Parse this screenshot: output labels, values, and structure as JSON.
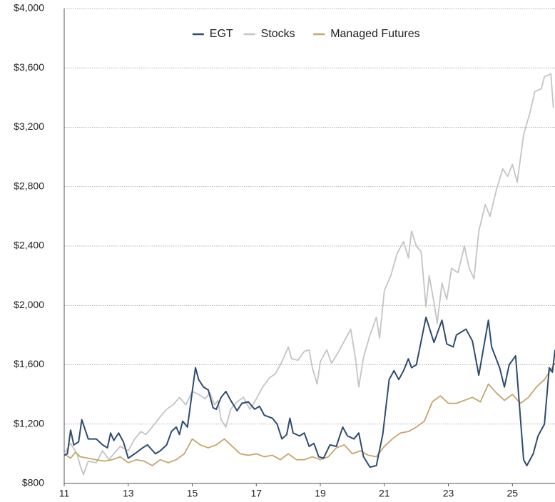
{
  "chart_data": {
    "type": "line",
    "xlim": [
      11,
      26.33
    ],
    "xticks": [
      11,
      13,
      15,
      17,
      19,
      21,
      23,
      25
    ],
    "ylim": [
      800,
      4000
    ],
    "yticks": [
      {
        "value": 800,
        "label": "$800"
      },
      {
        "value": 1200,
        "label": "$1,200"
      },
      {
        "value": 1600,
        "label": "$1,600"
      },
      {
        "value": 2000,
        "label": "$2,000"
      },
      {
        "value": 2400,
        "label": "$2,400"
      },
      {
        "value": 2800,
        "label": "$2,800"
      },
      {
        "value": 3200,
        "label": "$3,200"
      },
      {
        "value": 3600,
        "label": "$3,600"
      },
      {
        "value": 4000,
        "label": "$4,000"
      }
    ],
    "grid": true,
    "legend": "top",
    "series": [
      {
        "name": "EGT",
        "color": "#2f4b6e",
        "x": [
          11.0,
          11.1,
          11.2,
          11.3,
          11.45,
          11.55,
          11.75,
          12.0,
          12.2,
          12.35,
          12.45,
          12.55,
          12.7,
          12.85,
          13.0,
          13.2,
          13.45,
          13.6,
          13.85,
          14.0,
          14.2,
          14.35,
          14.5,
          14.6,
          14.7,
          14.85,
          15.0,
          15.1,
          15.2,
          15.35,
          15.5,
          15.65,
          15.75,
          15.9,
          16.05,
          16.2,
          16.4,
          16.55,
          16.75,
          16.95,
          17.1,
          17.25,
          17.5,
          17.65,
          17.8,
          17.95,
          18.05,
          18.15,
          18.35,
          18.5,
          18.65,
          18.8,
          18.95,
          19.1,
          19.3,
          19.5,
          19.7,
          19.85,
          20.05,
          20.2,
          20.35,
          20.55,
          20.75,
          20.95,
          21.15,
          21.3,
          21.45,
          21.6,
          21.75,
          21.85,
          22.0,
          22.3,
          22.55,
          22.8,
          22.95,
          23.15,
          23.25,
          23.55,
          23.75,
          23.95,
          24.25,
          24.35,
          24.6,
          24.75,
          24.9,
          25.1,
          25.35,
          25.45,
          25.65,
          25.8,
          26.0,
          26.15,
          26.25,
          26.33
        ],
        "values": [
          990,
          1000,
          1160,
          1060,
          1080,
          1230,
          1100,
          1100,
          1060,
          1040,
          1140,
          1090,
          1140,
          1080,
          970,
          1000,
          1040,
          1060,
          1000,
          1020,
          1060,
          1150,
          1180,
          1130,
          1220,
          1180,
          1420,
          1580,
          1500,
          1450,
          1430,
          1310,
          1300,
          1380,
          1420,
          1360,
          1290,
          1340,
          1350,
          1300,
          1320,
          1260,
          1240,
          1200,
          1100,
          1130,
          1240,
          1140,
          1120,
          1140,
          1050,
          1070,
          980,
          970,
          1060,
          1050,
          1180,
          1120,
          1100,
          1140,
          980,
          910,
          920,
          1130,
          1500,
          1560,
          1500,
          1560,
          1640,
          1580,
          1600,
          1920,
          1750,
          1900,
          1740,
          1720,
          1800,
          1840,
          1760,
          1530,
          1900,
          1720,
          1580,
          1450,
          1600,
          1660,
          960,
          920,
          1000,
          1120,
          1200,
          1580,
          1550,
          1700
        ]
      },
      {
        "name": "Stocks",
        "color": "#c4c4c4",
        "x": [
          11.0,
          11.2,
          11.4,
          11.5,
          11.6,
          11.75,
          12.0,
          12.2,
          12.4,
          12.55,
          12.75,
          13.0,
          13.2,
          13.4,
          13.55,
          13.75,
          14.0,
          14.2,
          14.4,
          14.6,
          14.8,
          15.0,
          15.2,
          15.4,
          15.55,
          15.7,
          15.8,
          15.9,
          16.05,
          16.2,
          16.4,
          16.6,
          16.8,
          17.0,
          17.2,
          17.4,
          17.6,
          17.8,
          18.0,
          18.1,
          18.3,
          18.5,
          18.65,
          18.75,
          18.9,
          19.0,
          19.2,
          19.35,
          19.55,
          19.75,
          19.95,
          20.1,
          20.2,
          20.35,
          20.55,
          20.75,
          20.85,
          21.0,
          21.2,
          21.4,
          21.6,
          21.75,
          21.85,
          22.0,
          22.15,
          22.3,
          22.4,
          22.55,
          22.65,
          22.8,
          22.95,
          23.1,
          23.3,
          23.5,
          23.65,
          23.8,
          23.95,
          24.15,
          24.3,
          24.5,
          24.7,
          24.85,
          25.0,
          25.15,
          25.35,
          25.55,
          25.7,
          25.9,
          26.0,
          26.2,
          26.28
        ],
        "values": [
          1000,
          1070,
          1000,
          920,
          860,
          950,
          940,
          1020,
          960,
          1000,
          1050,
          1020,
          1100,
          1150,
          1130,
          1180,
          1250,
          1300,
          1330,
          1380,
          1330,
          1420,
          1400,
          1370,
          1410,
          1330,
          1360,
          1230,
          1180,
          1300,
          1350,
          1380,
          1300,
          1370,
          1450,
          1510,
          1540,
          1620,
          1720,
          1640,
          1630,
          1690,
          1700,
          1580,
          1470,
          1620,
          1700,
          1610,
          1680,
          1760,
          1840,
          1640,
          1450,
          1650,
          1800,
          1920,
          1780,
          2100,
          2200,
          2350,
          2430,
          2320,
          2500,
          2400,
          2360,
          1990,
          2200,
          2020,
          1880,
          2150,
          2040,
          2250,
          2220,
          2400,
          2250,
          2180,
          2500,
          2680,
          2600,
          2780,
          2920,
          2870,
          2950,
          2830,
          3150,
          3300,
          3440,
          3460,
          3540,
          3560,
          3330
        ]
      },
      {
        "name": "Managed Futures",
        "color": "#c3a66c",
        "x": [
          11.0,
          11.2,
          11.35,
          11.5,
          11.75,
          12.0,
          12.25,
          12.5,
          12.75,
          13.0,
          13.25,
          13.5,
          13.75,
          14.0,
          14.25,
          14.5,
          14.75,
          15.0,
          15.25,
          15.5,
          15.75,
          16.0,
          16.25,
          16.5,
          16.75,
          17.0,
          17.25,
          17.5,
          17.75,
          18.0,
          18.25,
          18.5,
          18.75,
          19.0,
          19.25,
          19.5,
          19.75,
          20.0,
          20.25,
          20.5,
          20.75,
          21.0,
          21.25,
          21.5,
          21.75,
          22.0,
          22.25,
          22.5,
          22.75,
          23.0,
          23.25,
          23.5,
          23.75,
          24.0,
          24.25,
          24.5,
          24.75,
          25.0,
          25.25,
          25.5,
          25.75,
          26.0,
          26.33
        ],
        "values": [
          1000,
          970,
          1010,
          980,
          970,
          960,
          950,
          960,
          980,
          940,
          960,
          950,
          920,
          960,
          940,
          960,
          1000,
          1100,
          1060,
          1040,
          1060,
          1100,
          1050,
          1000,
          990,
          1000,
          980,
          990,
          960,
          1000,
          960,
          960,
          980,
          960,
          980,
          1040,
          1060,
          1000,
          1020,
          990,
          980,
          1050,
          1100,
          1140,
          1150,
          1180,
          1220,
          1350,
          1390,
          1340,
          1340,
          1360,
          1380,
          1350,
          1470,
          1410,
          1360,
          1400,
          1340,
          1380,
          1450,
          1500,
          1610
        ]
      }
    ]
  }
}
